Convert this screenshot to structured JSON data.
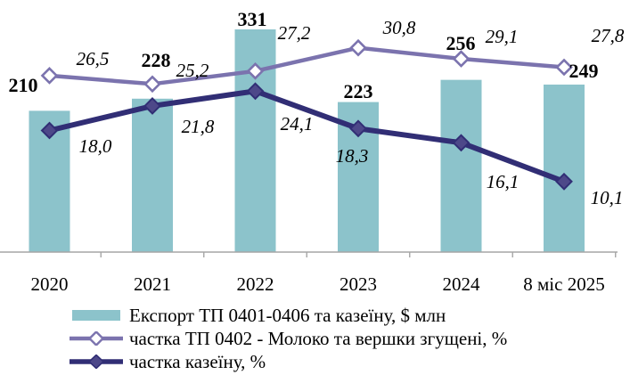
{
  "chart_data": {
    "type": "combo",
    "categories": [
      "2020",
      "2021",
      "2022",
      "2023",
      "2024",
      "8 міс 2025"
    ],
    "series": [
      {
        "name": "Експорт ТП 0401-0406 та казеїну, $ млн",
        "type": "bar",
        "values": [
          210,
          228,
          331,
          223,
          256,
          249
        ],
        "labels": [
          "210",
          "228",
          "331",
          "223",
          "256",
          "249"
        ],
        "color": "#8cc3cb"
      },
      {
        "name": "частка ТП 0402 - Молоко та вершки згущені, %",
        "type": "line",
        "marker": "open-diamond",
        "values": [
          26.5,
          25.2,
          27.2,
          30.8,
          29.1,
          27.8
        ],
        "labels": [
          "26,5",
          "25,2",
          "27,2",
          "30,8",
          "29,1",
          "27,8"
        ],
        "color": "#7b73ae"
      },
      {
        "name": "частка казеїну, %",
        "type": "line",
        "marker": "filled-diamond",
        "values": [
          18.0,
          21.8,
          24.1,
          18.3,
          16.1,
          10.1
        ],
        "labels": [
          "18,0",
          "21,8",
          "24,1",
          "18,3",
          "16,1",
          "10,1"
        ],
        "color": "#312e75",
        "marker_fill": "#4d4889"
      }
    ],
    "title": "",
    "xlabel": "",
    "ylabel": "",
    "bar_axis_range": [
      0,
      375
    ],
    "grid": false,
    "legend_position": "bottom",
    "axis_color": "#a6a6a6",
    "text_color": "#000000"
  }
}
